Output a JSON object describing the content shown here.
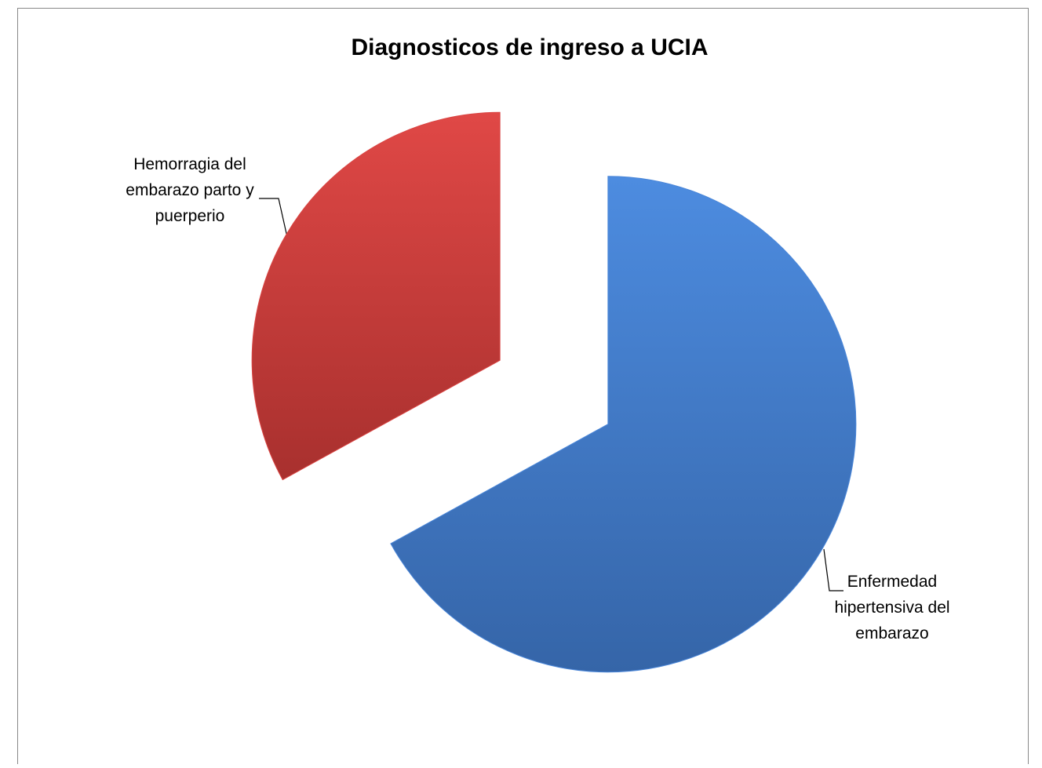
{
  "chart_data": {
    "type": "pie",
    "title": "Diagnosticos de ingreso a UCIA",
    "categories": [
      "Enfermedad hipertensiva del embarazo",
      "Hemorragia del embarazo parto y puerperio"
    ],
    "values": [
      67,
      33
    ],
    "colors": [
      "#4a86d8",
      "#d94442"
    ]
  }
}
